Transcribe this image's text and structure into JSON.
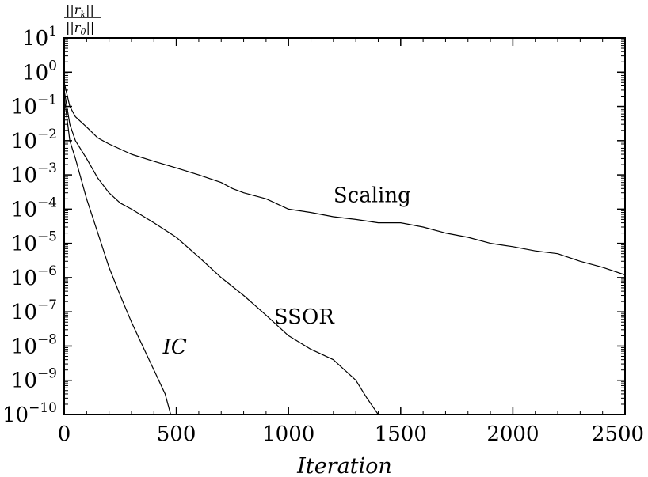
{
  "chart_data": {
    "type": "line",
    "xlabel": "Iteration",
    "ylabel": "||r_k|| / ||r_0||",
    "ylabel_parts": {
      "numerator": "||r",
      "numerator_sub": "k",
      "denominator": "||r",
      "denominator_sub": "0",
      "closing": "||"
    },
    "xlim": [
      0,
      2500
    ],
    "ylim": [
      1e-10,
      10
    ],
    "yscale": "log",
    "grid": false,
    "x_ticks": [
      0,
      500,
      1000,
      1500,
      2000,
      2500
    ],
    "y_tick_base": "10",
    "y_tick_exponents": [
      "1",
      "0",
      "−1",
      "−2",
      "−3",
      "−4",
      "−5",
      "−6",
      "−7",
      "−8",
      "−9",
      "−10"
    ],
    "series": [
      {
        "name": "Scaling",
        "label_style": "normal",
        "x": [
          0,
          25,
          50,
          100,
          150,
          200,
          300,
          400,
          500,
          600,
          700,
          750,
          800,
          900,
          1000,
          1100,
          1200,
          1300,
          1400,
          1500,
          1600,
          1700,
          1800,
          1900,
          2000,
          2100,
          2200,
          2300,
          2400,
          2500
        ],
        "y": [
          0.5,
          0.1,
          0.05,
          0.025,
          0.012,
          0.008,
          0.004,
          0.0025,
          0.0016,
          0.001,
          0.0006,
          0.0004,
          0.0003,
          0.0002,
          0.0001,
          8e-05,
          6e-05,
          5e-05,
          4e-05,
          4e-05,
          3e-05,
          2e-05,
          1.5e-05,
          1e-05,
          8e-06,
          6e-06,
          5e-06,
          3e-06,
          2e-06,
          1.2e-06
        ]
      },
      {
        "name": "SSOR",
        "label_style": "normal",
        "x": [
          0,
          25,
          50,
          100,
          150,
          200,
          250,
          300,
          400,
          500,
          600,
          700,
          800,
          900,
          1000,
          1100,
          1200,
          1300,
          1350,
          1400
        ],
        "y": [
          0.3,
          0.03,
          0.01,
          0.003,
          0.0008,
          0.0003,
          0.00015,
          0.0001,
          4e-05,
          1.5e-05,
          4e-06,
          1e-06,
          3e-07,
          8e-08,
          2e-08,
          8e-09,
          4e-09,
          1e-09,
          3e-10,
          1e-10
        ]
      },
      {
        "name": "IC",
        "label_style": "italic",
        "x": [
          0,
          25,
          50,
          100,
          150,
          200,
          250,
          300,
          350,
          400,
          450,
          475
        ],
        "y": [
          0.2,
          0.01,
          0.003,
          0.0002,
          2e-05,
          2e-06,
          3e-07,
          5e-08,
          1e-08,
          2e-09,
          4e-10,
          1e-10
        ]
      }
    ],
    "annotations": [
      {
        "text": "Scaling",
        "x": 1200,
        "y": 0.00016,
        "italic": false
      },
      {
        "text": "SSOR",
        "x": 935,
        "y": 4.5e-08,
        "italic": false
      },
      {
        "text": "IC",
        "x": 440,
        "y": 6e-09,
        "italic": true
      }
    ]
  }
}
